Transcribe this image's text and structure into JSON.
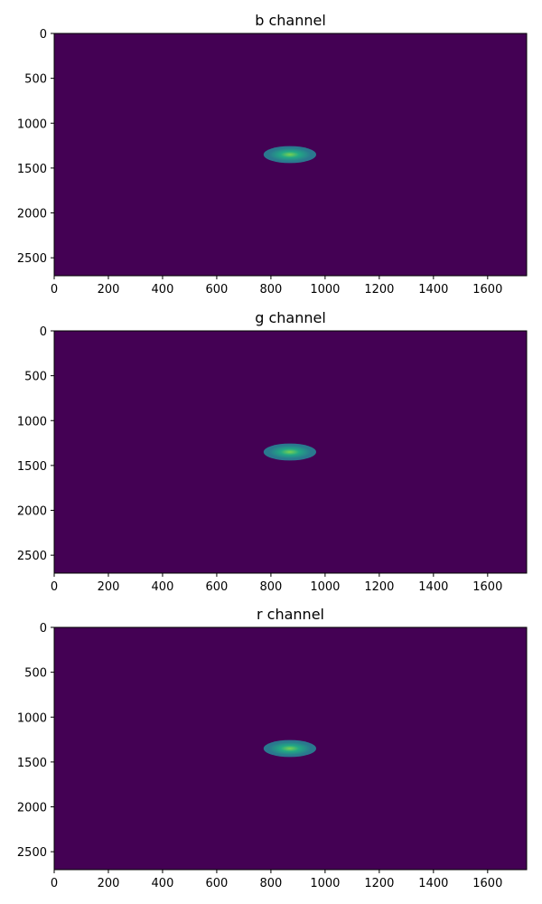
{
  "chart_data": [
    {
      "type": "heatmap",
      "title": "b channel",
      "xlim": [
        0,
        1744
      ],
      "ylim": [
        2700,
        0
      ],
      "xticks": [
        0,
        200,
        400,
        600,
        800,
        1000,
        1200,
        1400,
        1600
      ],
      "yticks": [
        0,
        500,
        1000,
        1500,
        2000,
        2500
      ],
      "xlabel": "",
      "ylabel": "",
      "grid": false,
      "colormap": "viridis",
      "background_value": 0.0,
      "blob": {
        "center_x": 870,
        "center_y": 1350,
        "radius_x": 97,
        "radius_y": 95,
        "peak_value": 1.0
      },
      "colors": {
        "background": "#440154",
        "blob_edge": "#2a788e",
        "blob_mid": "#22a884",
        "blob_peak": "#7ad151"
      }
    },
    {
      "type": "heatmap",
      "title": "g channel",
      "xlim": [
        0,
        1744
      ],
      "ylim": [
        2700,
        0
      ],
      "xticks": [
        0,
        200,
        400,
        600,
        800,
        1000,
        1200,
        1400,
        1600
      ],
      "yticks": [
        0,
        500,
        1000,
        1500,
        2000,
        2500
      ],
      "xlabel": "",
      "ylabel": "",
      "grid": false,
      "colormap": "viridis",
      "background_value": 0.0,
      "blob": {
        "center_x": 870,
        "center_y": 1350,
        "radius_x": 97,
        "radius_y": 95,
        "peak_value": 1.0
      },
      "colors": {
        "background": "#440154",
        "blob_edge": "#2a788e",
        "blob_mid": "#22a884",
        "blob_peak": "#7ad151"
      }
    },
    {
      "type": "heatmap",
      "title": "r channel",
      "xlim": [
        0,
        1744
      ],
      "ylim": [
        2700,
        0
      ],
      "xticks": [
        0,
        200,
        400,
        600,
        800,
        1000,
        1200,
        1400,
        1600
      ],
      "yticks": [
        0,
        500,
        1000,
        1500,
        2000,
        2500
      ],
      "xlabel": "",
      "ylabel": "",
      "grid": false,
      "colormap": "viridis",
      "background_value": 0.0,
      "blob": {
        "center_x": 870,
        "center_y": 1350,
        "radius_x": 97,
        "radius_y": 95,
        "peak_value": 1.0
      },
      "colors": {
        "background": "#440154",
        "blob_edge": "#2a788e",
        "blob_mid": "#22a884",
        "blob_peak": "#7ad151"
      }
    }
  ]
}
